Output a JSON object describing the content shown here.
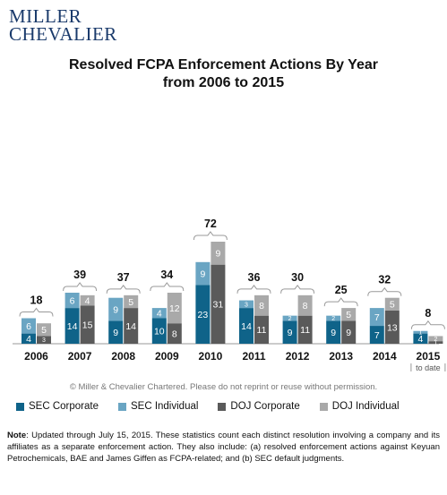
{
  "logo": {
    "line1": "MILLER",
    "line2": "CHEVALIER"
  },
  "title": {
    "line1": "Resolved FCPA Enforcement Actions By Year",
    "line2": "from 2006 to 2015"
  },
  "copyright": "© Miller & Chevalier Chartered. Please do not reprint or reuse without permission.",
  "note": {
    "label": "Note",
    "text": ": Updated through July 15, 2015. These statistics count each distinct resolution involving a company and its affiliates as a separate enforcement action. They also include: (a) resolved enforcement actions against Keyuan Petrochemicals, BAE and James Giffen as FCPA-related; and (b) SEC default judgments."
  },
  "colors": {
    "sec_corporate": "#0f6389",
    "sec_individual": "#6aa5c3",
    "doj_corporate": "#5a5a5a",
    "doj_individual": "#a9a9a9"
  },
  "chart_data": {
    "type": "bar",
    "categories": [
      "2006",
      "2007",
      "2008",
      "2009",
      "2010",
      "2011",
      "2012",
      "2013",
      "2014",
      "2015"
    ],
    "category_sublabels": {
      "2015": "to date"
    },
    "series": [
      {
        "name": "SEC Corporate",
        "values": [
          4,
          14,
          9,
          10,
          23,
          14,
          9,
          9,
          7,
          4
        ]
      },
      {
        "name": "SEC Individual",
        "values": [
          6,
          6,
          9,
          4,
          9,
          3,
          2,
          2,
          7,
          1
        ]
      },
      {
        "name": "DOJ Corporate",
        "values": [
          3,
          15,
          14,
          8,
          31,
          11,
          11,
          9,
          13,
          1
        ]
      },
      {
        "name": "DOJ Individual",
        "values": [
          5,
          4,
          5,
          12,
          9,
          8,
          8,
          5,
          5,
          2
        ]
      }
    ],
    "totals": [
      18,
      39,
      37,
      34,
      72,
      36,
      30,
      25,
      32,
      8
    ],
    "stacking": "SEC series stacked in left bar, DOJ series stacked in right bar",
    "legend_position": "bottom",
    "grid": false
  }
}
